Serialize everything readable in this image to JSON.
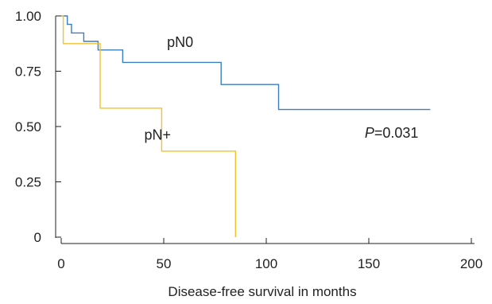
{
  "chart_data": {
    "type": "line",
    "step": true,
    "xlabel": "Disease-free survival in months",
    "ylabel": "",
    "xlim": [
      0,
      200
    ],
    "ylim": [
      0,
      1.0
    ],
    "x_ticks": [
      0,
      50,
      100,
      150,
      200
    ],
    "x_tick_labels": [
      "0",
      "50",
      "100",
      "150",
      "200"
    ],
    "y_ticks": [
      0,
      0.25,
      0.5,
      0.75,
      1.0
    ],
    "y_tick_labels": [
      "0",
      "0.25",
      "0.50",
      "0.75",
      "1.00"
    ],
    "grid": false,
    "series": [
      {
        "name": "pN0",
        "color": "#3a7fc1",
        "label_at": [
          58,
          0.86
        ],
        "points": [
          [
            0,
            1.0
          ],
          [
            3,
            1.0
          ],
          [
            3,
            0.962
          ],
          [
            5,
            0.962
          ],
          [
            5,
            0.923
          ],
          [
            11,
            0.923
          ],
          [
            11,
            0.885
          ],
          [
            18,
            0.885
          ],
          [
            18,
            0.846
          ],
          [
            30,
            0.846
          ],
          [
            30,
            0.79
          ],
          [
            78,
            0.79
          ],
          [
            78,
            0.69
          ],
          [
            106,
            0.69
          ],
          [
            106,
            0.577
          ],
          [
            180,
            0.577
          ]
        ]
      },
      {
        "name": "pN+",
        "color": "#f2c12e",
        "label_at": [
          47,
          0.44
        ],
        "points": [
          [
            0,
            1.0
          ],
          [
            1,
            1.0
          ],
          [
            1,
            0.875
          ],
          [
            19,
            0.875
          ],
          [
            19,
            0.583
          ],
          [
            49,
            0.583
          ],
          [
            49,
            0.389
          ],
          [
            85,
            0.389
          ],
          [
            85,
            0.0
          ]
        ]
      }
    ],
    "annotation": {
      "prefix": "P",
      "text": "=0.031",
      "at": [
        148,
        0.45
      ]
    }
  }
}
